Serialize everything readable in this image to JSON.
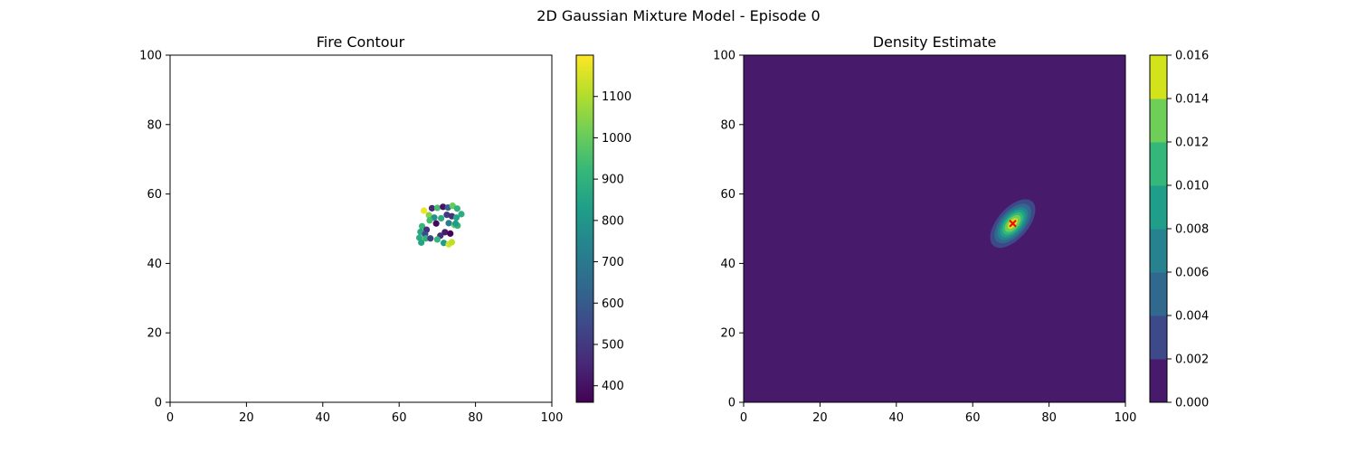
{
  "figure": {
    "suptitle": "2D Gaussian Mixture Model - Episode 0"
  },
  "colormap": [
    "#440154",
    "#482878",
    "#3e4989",
    "#31688e",
    "#26828e",
    "#1f9e89",
    "#35b779",
    "#6ece58",
    "#b5de2b",
    "#fde725"
  ],
  "chart_data": [
    {
      "type": "scatter",
      "title": "Fire Contour",
      "xlabel": "",
      "ylabel": "",
      "xlim": [
        0,
        100
      ],
      "ylim": [
        0,
        100
      ],
      "xticks": [
        "0",
        "20",
        "40",
        "60",
        "80",
        "100"
      ],
      "yticks": [
        "0",
        "20",
        "40",
        "60",
        "80",
        "100"
      ],
      "grid": false,
      "background": "#ffffff",
      "colorbar": {
        "range": [
          360,
          1200
        ],
        "ticks": [
          "400",
          "500",
          "600",
          "700",
          "800",
          "900",
          "1000",
          "1100"
        ],
        "tick_values": [
          400,
          500,
          600,
          700,
          800,
          900,
          1000,
          1100
        ]
      },
      "points": [
        [
          66.5,
          55.2,
          1180
        ],
        [
          68.6,
          55.9,
          450
        ],
        [
          70.0,
          56.0,
          950
        ],
        [
          71.5,
          56.3,
          400
        ],
        [
          72.8,
          56.1,
          620
        ],
        [
          74.0,
          56.6,
          1000
        ],
        [
          75.2,
          55.8,
          900
        ],
        [
          67.8,
          53.9,
          1040
        ],
        [
          69.2,
          53.2,
          780
        ],
        [
          71.0,
          53.0,
          880
        ],
        [
          72.5,
          54.0,
          500
        ],
        [
          73.8,
          53.6,
          470
        ],
        [
          75.0,
          53.2,
          850
        ],
        [
          76.3,
          54.2,
          880
        ],
        [
          68.0,
          52.4,
          940
        ],
        [
          69.7,
          51.5,
          380
        ],
        [
          73.0,
          51.6,
          720
        ],
        [
          74.5,
          51.1,
          1000
        ],
        [
          75.3,
          50.9,
          900
        ],
        [
          66.0,
          50.7,
          920
        ],
        [
          67.2,
          49.7,
          480
        ],
        [
          65.6,
          49.1,
          860
        ],
        [
          66.8,
          48.4,
          550
        ],
        [
          72.0,
          49.0,
          420
        ],
        [
          73.4,
          48.6,
          370
        ],
        [
          70.8,
          48.0,
          470
        ],
        [
          65.3,
          47.4,
          880
        ],
        [
          67.0,
          47.2,
          900
        ],
        [
          68.2,
          47.2,
          520
        ],
        [
          70.0,
          46.9,
          920
        ],
        [
          71.7,
          45.9,
          820
        ],
        [
          65.8,
          46.0,
          850
        ],
        [
          73.0,
          45.5,
          1150
        ],
        [
          73.8,
          46.1,
          1120
        ],
        [
          74.8,
          51.5,
          820
        ]
      ]
    },
    {
      "type": "heatmap",
      "title": "Density Estimate",
      "xlabel": "",
      "ylabel": "",
      "xlim": [
        0,
        100
      ],
      "ylim": [
        0,
        100
      ],
      "xticks": [
        "0",
        "20",
        "40",
        "60",
        "80",
        "100"
      ],
      "yticks": [
        "0",
        "20",
        "40",
        "60",
        "80",
        "100"
      ],
      "grid": false,
      "gaussian": {
        "mean": [
          70.5,
          51.5
        ],
        "sx": 3.0,
        "sy": 3.2,
        "rho": 0.5,
        "peak": 0.0155
      },
      "levels": [
        0,
        0.002,
        0.004,
        0.006,
        0.008,
        0.01,
        0.012,
        0.014,
        0.016
      ],
      "level_colors": [
        "#481a6c",
        "#3e4989",
        "#31688e",
        "#26828e",
        "#1f9e89",
        "#35b779",
        "#6ece58",
        "#d2e21b"
      ],
      "marker": {
        "x": 70.5,
        "y": 51.5,
        "symbol": "x",
        "color": "#ff0000"
      },
      "colorbar": {
        "range": [
          0,
          0.016
        ],
        "ticks": [
          "0.000",
          "0.002",
          "0.004",
          "0.006",
          "0.008",
          "0.010",
          "0.012",
          "0.014",
          "0.016"
        ],
        "tick_values": [
          0,
          0.002,
          0.004,
          0.006,
          0.008,
          0.01,
          0.012,
          0.014,
          0.016
        ]
      }
    }
  ]
}
